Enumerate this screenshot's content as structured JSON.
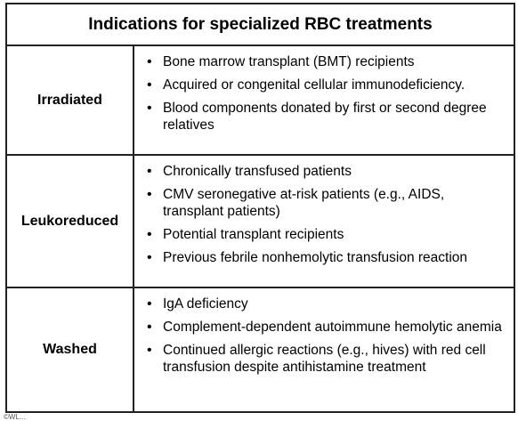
{
  "title": "Indications for specialized RBC treatments",
  "rows": [
    {
      "label": "Irradiated",
      "items": [
        "Bone marrow transplant (BMT) recipients",
        "Acquired or congenital cellular immunodeficiency.",
        "Blood components donated by first or second degree relatives"
      ]
    },
    {
      "label": "Leukoreduced",
      "items": [
        "Chronically transfused patients",
        "CMV seronegative at-risk patients (e.g., AIDS, transplant patients)",
        "Potential transplant recipients",
        "Previous febrile nonhemolytic transfusion reaction"
      ]
    },
    {
      "label": "Washed",
      "items": [
        "IgA deficiency",
        "Complement-dependent autoimmune hemolytic anemia",
        "Continued allergic reactions (e.g., hives) with red cell transfusion despite antihistamine treatment"
      ]
    }
  ],
  "footer": "©WL..."
}
